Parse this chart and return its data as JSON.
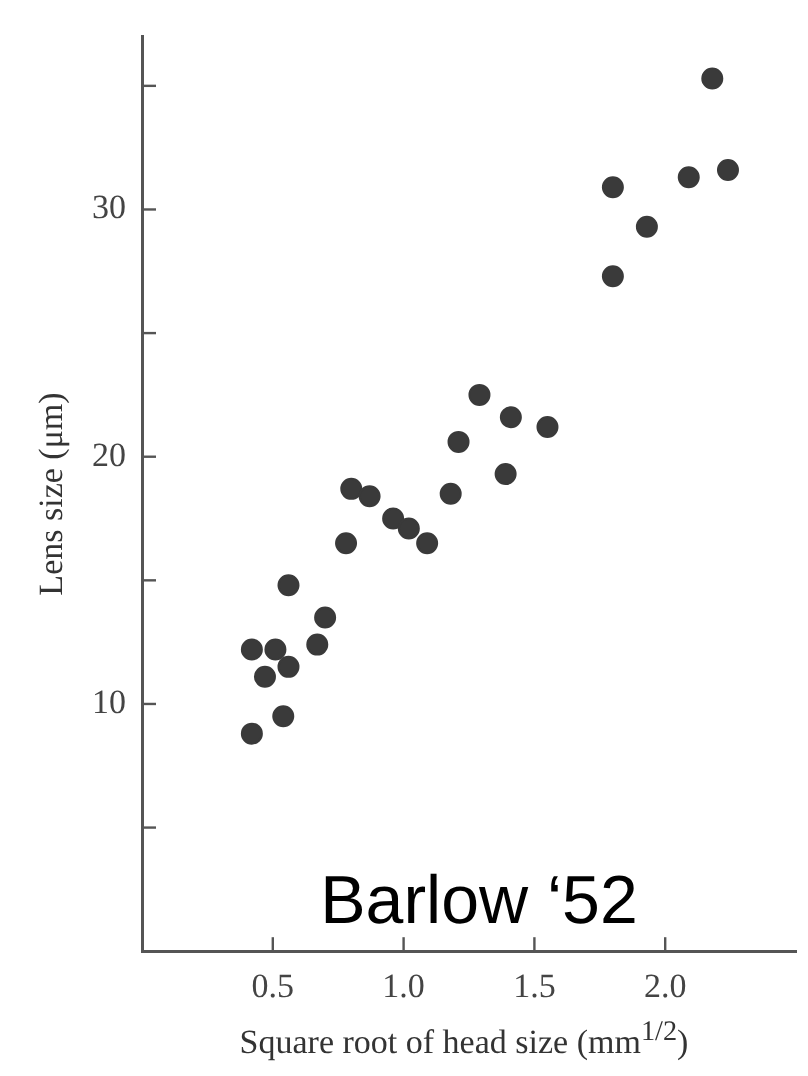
{
  "chart_data": {
    "type": "scatter",
    "xlabel": "Square root of head size (mm$^{1/2}$)",
    "ylabel": "Lens size (μm)",
    "annotations": [
      "Barlow ‘52"
    ],
    "x": [
      2.18,
      1.8,
      2.09,
      2.24,
      1.93,
      1.8,
      1.29,
      1.41,
      1.55,
      1.21,
      1.39,
      1.18,
      0.8,
      0.87,
      0.96,
      1.02,
      1.09,
      0.78,
      0.56,
      0.7,
      0.67,
      0.42,
      0.51,
      0.56,
      0.47,
      0.54,
      0.42
    ],
    "series": [
      {
        "color": "#3a3a3a",
        "values": [
          35.3,
          30.9,
          31.3,
          31.6,
          29.3,
          27.3,
          22.5,
          21.6,
          21.2,
          20.6,
          19.3,
          18.5,
          18.7,
          18.4,
          17.5,
          17.1,
          16.5,
          16.5,
          14.8,
          13.5,
          12.4,
          12.2,
          12.2,
          11.5,
          11.1,
          9.5,
          8.8
        ]
      }
    ],
    "xlim": [
      0,
      2.5
    ],
    "xticks": [
      0.5,
      {
        "value": 1,
        "label": "1.0"
      },
      1.5,
      {
        "value": 2,
        "label": "2.0"
      }
    ],
    "ylim": [
      0,
      37
    ],
    "yticks": [
      {
        "value": 5,
        "label": null
      },
      10,
      {
        "value": 15,
        "label": null
      },
      20,
      {
        "value": 25,
        "label": null
      },
      30,
      {
        "value": 35,
        "label": null
      }
    ],
    "marker": "circle",
    "grid": false,
    "legend": false
  }
}
